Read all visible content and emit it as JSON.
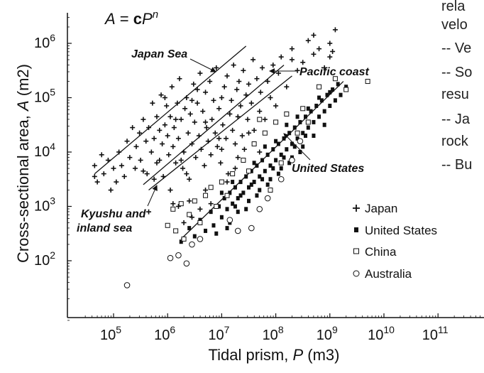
{
  "chart_data": {
    "type": "scatter",
    "title": "A = cP^n",
    "title_parts": {
      "a": "A",
      "eq": " = ",
      "c": "c",
      "p": "P",
      "n": "n"
    },
    "xlabel": {
      "text": "Tidal prism, ",
      "sym": "P",
      "unit": " (m3)"
    },
    "ylabel": {
      "text": "Cross-sectional area, ",
      "sym": "A",
      "unit": " (m2)"
    },
    "x_log": true,
    "y_log": true,
    "xlim_exp": [
      4.4,
      11.8
    ],
    "ylim_exp": [
      0.9,
      6.6
    ],
    "x_ticks": [
      {
        "exp": 5,
        "base": "10",
        "sup": "5"
      },
      {
        "exp": 6,
        "base": "10",
        "sup": "6"
      },
      {
        "exp": 7,
        "base": "10",
        "sup": "7"
      },
      {
        "exp": 8,
        "base": "10",
        "sup": "8"
      },
      {
        "exp": 9,
        "base": "10",
        "sup": "9"
      },
      {
        "exp": 10,
        "base": "10",
        "sup": "10"
      },
      {
        "exp": 11,
        "base": "10",
        "sup": "11"
      }
    ],
    "y_ticks": [
      {
        "exp": 2,
        "base": "10",
        "sup": "2"
      },
      {
        "exp": 3,
        "base": "10",
        "sup": "3"
      },
      {
        "exp": 4,
        "base": "10",
        "sup": "4"
      },
      {
        "exp": 5,
        "base": "10",
        "sup": "5"
      },
      {
        "exp": 6,
        "base": "10",
        "sup": "6"
      }
    ],
    "legend_position": "bottom-right",
    "grid": false,
    "series": [
      {
        "name": "Japan",
        "marker": "plus",
        "points": [
          [
            4.65,
            3.55
          ],
          [
            4.65,
            3.75
          ],
          [
            4.7,
            3.45
          ],
          [
            4.78,
            3.95
          ],
          [
            4.82,
            3.6
          ],
          [
            4.9,
            3.85
          ],
          [
            4.95,
            3.3
          ],
          [
            5.0,
            3.7
          ],
          [
            5.05,
            3.45
          ],
          [
            5.1,
            4.0
          ],
          [
            5.15,
            3.75
          ],
          [
            5.2,
            3.55
          ],
          [
            5.25,
            4.2
          ],
          [
            5.3,
            3.9
          ],
          [
            5.35,
            4.45
          ],
          [
            5.4,
            3.7
          ],
          [
            5.42,
            4.1
          ],
          [
            5.48,
            4.35
          ],
          [
            5.5,
            3.85
          ],
          [
            5.55,
            4.6
          ],
          [
            5.6,
            4.2
          ],
          [
            5.62,
            3.6
          ],
          [
            5.65,
            4.45
          ],
          [
            5.7,
            4.0
          ],
          [
            5.72,
            4.9
          ],
          [
            5.75,
            4.25
          ],
          [
            5.8,
            3.8
          ],
          [
            5.8,
            4.65
          ],
          [
            5.85,
            4.4
          ],
          [
            5.88,
            5.05
          ],
          [
            5.9,
            4.15
          ],
          [
            5.92,
            3.55
          ],
          [
            5.95,
            4.5
          ],
          [
            5.98,
            4.85
          ],
          [
            6.0,
            4.3
          ],
          [
            6.02,
            3.95
          ],
          [
            6.05,
            4.65
          ],
          [
            6.08,
            5.2
          ],
          [
            6.1,
            4.1
          ],
          [
            6.12,
            4.45
          ],
          [
            6.15,
            3.8
          ],
          [
            6.18,
            4.9
          ],
          [
            6.2,
            4.25
          ],
          [
            6.22,
            5.35
          ],
          [
            6.25,
            4.6
          ],
          [
            6.28,
            3.7
          ],
          [
            6.3,
            4.0
          ],
          [
            6.32,
            4.8
          ],
          [
            6.35,
            5.0
          ],
          [
            6.38,
            4.35
          ],
          [
            6.4,
            3.5
          ],
          [
            6.42,
            4.7
          ],
          [
            6.45,
            4.15
          ],
          [
            6.48,
            5.25
          ],
          [
            6.5,
            4.55
          ],
          [
            6.52,
            3.9
          ],
          [
            6.55,
            4.9
          ],
          [
            6.58,
            4.3
          ],
          [
            6.6,
            5.45
          ],
          [
            6.62,
            4.05
          ],
          [
            6.65,
            4.75
          ],
          [
            6.68,
            3.75
          ],
          [
            6.7,
            5.1
          ],
          [
            6.72,
            4.45
          ],
          [
            6.75,
            4.2
          ],
          [
            6.78,
            5.3
          ],
          [
            6.8,
            3.95
          ],
          [
            6.82,
            4.6
          ],
          [
            6.85,
            4.95
          ],
          [
            6.88,
            4.35
          ],
          [
            6.9,
            5.55
          ],
          [
            6.92,
            4.1
          ],
          [
            6.95,
            4.8
          ],
          [
            6.98,
            3.8
          ],
          [
            7.0,
            5.0
          ],
          [
            7.02,
            4.5
          ],
          [
            7.05,
            5.2
          ],
          [
            7.08,
            4.25
          ],
          [
            7.1,
            5.4
          ],
          [
            7.12,
            3.6
          ],
          [
            7.15,
            4.7
          ],
          [
            7.18,
            4.95
          ],
          [
            7.2,
            4.4
          ],
          [
            7.22,
            5.6
          ],
          [
            7.25,
            4.15
          ],
          [
            7.28,
            5.15
          ],
          [
            7.3,
            4.65
          ],
          [
            7.32,
            5.3
          ],
          [
            7.35,
            4.85
          ],
          [
            7.38,
            4.3
          ],
          [
            7.4,
            5.5
          ],
          [
            7.42,
            4.05
          ],
          [
            7.45,
            5.05
          ],
          [
            7.48,
            4.6
          ],
          [
            7.5,
            5.25
          ],
          [
            7.55,
            4.9
          ],
          [
            7.58,
            5.7
          ],
          [
            7.6,
            4.4
          ],
          [
            7.65,
            5.35
          ],
          [
            7.7,
            4.75
          ],
          [
            7.72,
            5.1
          ],
          [
            7.75,
            5.55
          ],
          [
            7.8,
            4.6
          ],
          [
            7.85,
            5.3
          ],
          [
            7.9,
            5.0
          ],
          [
            7.95,
            5.6
          ],
          [
            8.0,
            4.85
          ],
          [
            8.05,
            5.45
          ],
          [
            8.1,
            5.75
          ],
          [
            8.2,
            5.2
          ],
          [
            8.3,
            5.9
          ],
          [
            8.4,
            5.5
          ],
          [
            8.5,
            5.65
          ],
          [
            8.6,
            6.05
          ],
          [
            8.7,
            5.8
          ],
          [
            8.8,
            5.9
          ],
          [
            8.9,
            5.55
          ],
          [
            9.0,
            6.0
          ],
          [
            9.05,
            5.85
          ],
          [
            9.1,
            6.25
          ],
          [
            8.3,
            5.7
          ],
          [
            8.7,
            6.15
          ],
          [
            9.0,
            5.75
          ],
          [
            5.55,
            3.65
          ],
          [
            5.85,
            3.85
          ],
          [
            6.05,
            3.3
          ],
          [
            6.4,
            3.1
          ],
          [
            6.8,
            3.05
          ],
          [
            7.1,
            3.45
          ],
          [
            6.35,
            3.6
          ],
          [
            6.15,
            4.6
          ],
          [
            6.7,
            4.55
          ],
          [
            7.3,
            3.9
          ],
          [
            7.5,
            4.35
          ],
          [
            7.7,
            4.0
          ],
          [
            6.95,
            4.25
          ],
          [
            6.25,
            3.85
          ],
          [
            5.75,
            3.5
          ],
          [
            6.55,
            5.15
          ],
          [
            5.95,
            5.0
          ],
          [
            6.45,
            4.95
          ],
          [
            7.25,
            3.7
          ],
          [
            5.65,
            2.9
          ],
          [
            6.1,
            3.05
          ],
          [
            6.6,
            2.95
          ],
          [
            7.0,
            4.05
          ],
          [
            6.3,
            2.7
          ],
          [
            6.45,
            2.8
          ],
          [
            6.2,
            3.0
          ],
          [
            6.7,
            3.3
          ]
        ]
      },
      {
        "name": "United States",
        "marker": "filled-square",
        "points": [
          [
            6.25,
            2.35
          ],
          [
            6.4,
            2.6
          ],
          [
            6.5,
            2.45
          ],
          [
            6.6,
            2.75
          ],
          [
            6.7,
            2.55
          ],
          [
            6.8,
            2.9
          ],
          [
            6.85,
            2.65
          ],
          [
            6.95,
            3.0
          ],
          [
            7.0,
            2.8
          ],
          [
            7.05,
            3.15
          ],
          [
            7.1,
            2.95
          ],
          [
            7.15,
            3.25
          ],
          [
            7.2,
            3.05
          ],
          [
            7.25,
            3.35
          ],
          [
            7.3,
            3.15
          ],
          [
            7.35,
            3.45
          ],
          [
            7.4,
            3.25
          ],
          [
            7.45,
            3.55
          ],
          [
            7.5,
            3.35
          ],
          [
            7.55,
            3.65
          ],
          [
            7.6,
            3.45
          ],
          [
            7.65,
            3.75
          ],
          [
            7.7,
            3.55
          ],
          [
            7.75,
            3.85
          ],
          [
            7.8,
            3.65
          ],
          [
            7.85,
            3.95
          ],
          [
            7.9,
            3.75
          ],
          [
            7.95,
            4.05
          ],
          [
            8.0,
            3.85
          ],
          [
            8.05,
            4.15
          ],
          [
            8.1,
            3.95
          ],
          [
            8.15,
            4.25
          ],
          [
            8.2,
            4.05
          ],
          [
            8.25,
            4.35
          ],
          [
            8.3,
            4.15
          ],
          [
            8.35,
            4.45
          ],
          [
            8.4,
            4.25
          ],
          [
            8.45,
            4.55
          ],
          [
            8.5,
            4.35
          ],
          [
            8.55,
            4.65
          ],
          [
            8.6,
            4.45
          ],
          [
            8.65,
            4.75
          ],
          [
            8.7,
            4.55
          ],
          [
            8.75,
            4.85
          ],
          [
            8.8,
            4.65
          ],
          [
            8.85,
            4.95
          ],
          [
            8.9,
            4.75
          ],
          [
            8.95,
            5.05
          ],
          [
            9.0,
            4.85
          ],
          [
            9.05,
            5.15
          ],
          [
            9.1,
            4.95
          ],
          [
            9.15,
            5.25
          ],
          [
            9.2,
            5.05
          ],
          [
            9.3,
            5.2
          ],
          [
            7.1,
            2.6
          ],
          [
            7.2,
            3.45
          ],
          [
            7.3,
            2.9
          ],
          [
            7.5,
            3.1
          ],
          [
            7.6,
            3.8
          ],
          [
            7.7,
            3.3
          ],
          [
            7.8,
            4.1
          ],
          [
            7.9,
            3.5
          ],
          [
            8.0,
            4.2
          ],
          [
            8.1,
            3.7
          ],
          [
            8.2,
            4.5
          ],
          [
            8.3,
            3.9
          ],
          [
            8.4,
            4.65
          ],
          [
            8.5,
            4.1
          ],
          [
            8.6,
            4.8
          ],
          [
            8.7,
            4.3
          ],
          [
            8.8,
            5.0
          ],
          [
            8.9,
            4.5
          ],
          [
            9.0,
            5.1
          ],
          [
            7.0,
            3.25
          ],
          [
            6.9,
            2.5
          ],
          [
            7.15,
            2.7
          ],
          [
            7.25,
            3.0
          ],
          [
            7.35,
            3.2
          ],
          [
            7.45,
            2.95
          ],
          [
            7.55,
            3.4
          ],
          [
            7.65,
            3.2
          ],
          [
            7.75,
            3.5
          ],
          [
            7.85,
            3.4
          ],
          [
            7.95,
            3.7
          ],
          [
            8.05,
            3.6
          ],
          [
            8.15,
            3.9
          ],
          [
            8.25,
            3.8
          ],
          [
            8.35,
            4.1
          ],
          [
            8.45,
            4.0
          ],
          [
            8.55,
            4.3
          ]
        ]
      },
      {
        "name": "China",
        "marker": "open-square",
        "points": [
          [
            6.0,
            2.65
          ],
          [
            6.1,
            2.95
          ],
          [
            6.15,
            2.55
          ],
          [
            6.25,
            3.05
          ],
          [
            6.3,
            2.4
          ],
          [
            6.4,
            2.85
          ],
          [
            6.5,
            3.1
          ],
          [
            6.6,
            2.7
          ],
          [
            6.7,
            3.2
          ],
          [
            6.8,
            3.35
          ],
          [
            7.0,
            3.45
          ],
          [
            7.2,
            3.6
          ],
          [
            7.4,
            3.85
          ],
          [
            7.6,
            4.15
          ],
          [
            7.8,
            4.35
          ],
          [
            8.0,
            4.55
          ],
          [
            8.2,
            4.7
          ],
          [
            8.5,
            4.8
          ],
          [
            8.8,
            5.2
          ],
          [
            9.1,
            5.35
          ],
          [
            9.3,
            5.15
          ],
          [
            9.7,
            5.3
          ],
          [
            7.9,
            3.3
          ],
          [
            8.1,
            3.8
          ],
          [
            8.4,
            4.35
          ],
          [
            6.9,
            3.0
          ],
          [
            7.1,
            3.2
          ],
          [
            7.5,
            3.65
          ],
          [
            8.6,
            4.55
          ],
          [
            7.7,
            4.6
          ]
        ]
      },
      {
        "name": "Australia",
        "marker": "open-circle",
        "points": [
          [
            5.25,
            1.55
          ],
          [
            6.05,
            2.05
          ],
          [
            6.35,
            1.95
          ],
          [
            6.45,
            2.3
          ],
          [
            6.2,
            2.1
          ],
          [
            7.3,
            2.55
          ],
          [
            7.15,
            2.75
          ],
          [
            7.7,
            2.95
          ],
          [
            7.55,
            2.6
          ],
          [
            7.85,
            3.15
          ],
          [
            8.1,
            3.5
          ],
          [
            8.3,
            3.85
          ],
          [
            8.45,
            4.2
          ],
          [
            6.6,
            2.4
          ]
        ]
      }
    ],
    "fit_lines": [
      {
        "name": "Japan Sea",
        "start": [
          4.65,
          3.6
        ],
        "end": [
          7.45,
          5.95
        ]
      },
      {
        "name": "Pacific coast",
        "start": [
          5.55,
          3.4
        ],
        "end": [
          8.15,
          5.6
        ]
      },
      {
        "name": "Kyushu and inland sea",
        "start": [
          5.65,
          3.3
        ],
        "end": [
          8.3,
          5.4
        ]
      },
      {
        "name": "United States",
        "start": [
          6.25,
          2.4
        ],
        "end": [
          9.25,
          5.3
        ]
      }
    ],
    "annotations": [
      {
        "id": "japan-sea",
        "lines": [
          "Japan Sea"
        ]
      },
      {
        "id": "pacific-coast",
        "lines": [
          "Pacific coast"
        ]
      },
      {
        "id": "united-states",
        "lines": [
          "United States"
        ]
      },
      {
        "id": "kyushu",
        "lines": [
          "Kyushu and",
          "inland sea"
        ]
      }
    ]
  },
  "side_text": [
    "rela",
    "velo",
    "-- Ve",
    "-- So",
    "resu",
    "-- Ja",
    "rock",
    "-- Bu"
  ]
}
